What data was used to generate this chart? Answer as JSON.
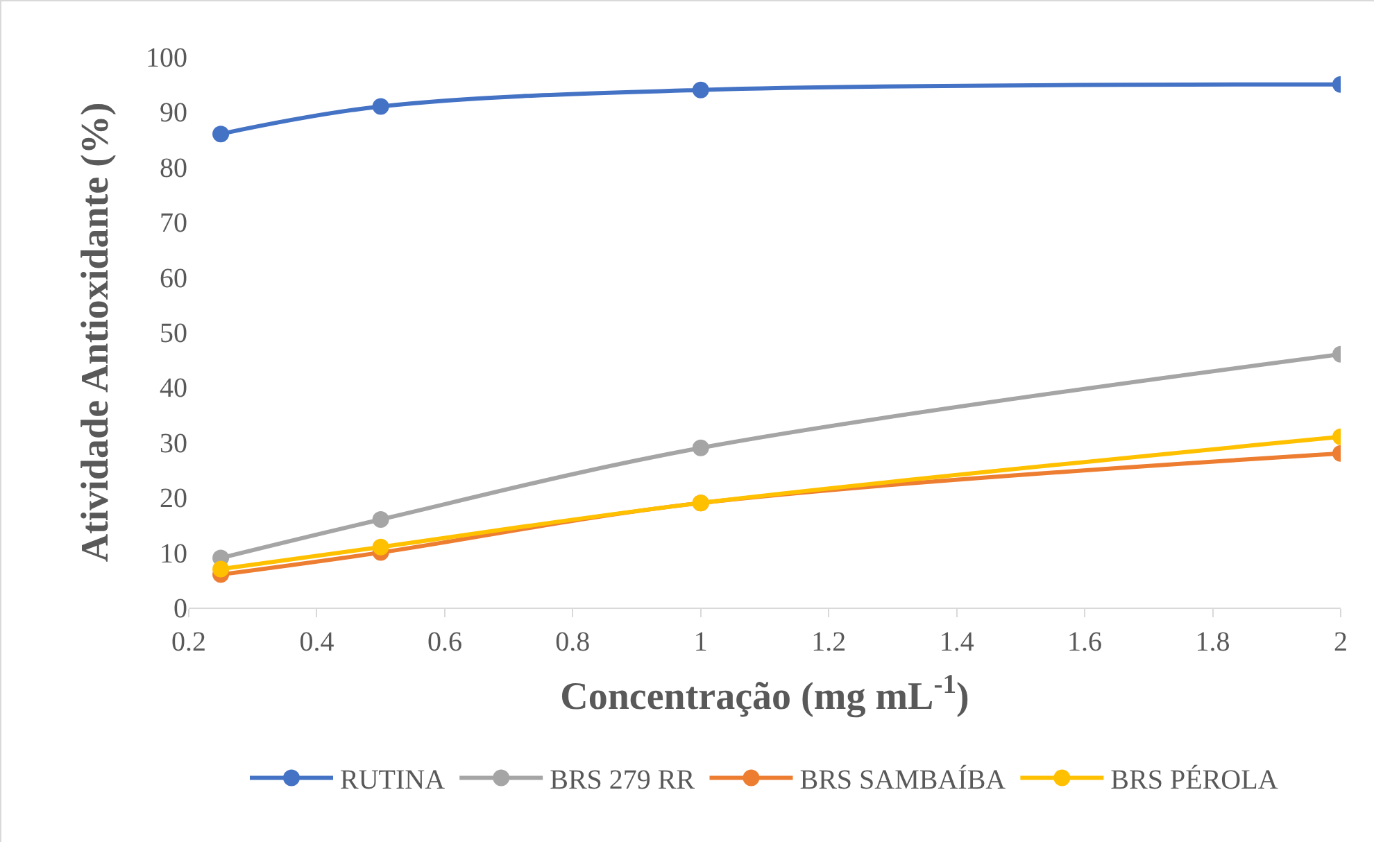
{
  "chart_data": {
    "type": "line",
    "xlabel": "Concentração (mg mL$^{-1}$)",
    "ylabel": "Atividade Antioxidante (%)",
    "x": [
      0.25,
      0.5,
      1,
      2
    ],
    "series": [
      {
        "name": "RUTINA",
        "color": "#4472c4",
        "values": [
          86,
          91,
          94,
          95
        ]
      },
      {
        "name": "BRS 279 RR",
        "color": "#a5a5a5",
        "values": [
          9,
          16,
          29,
          46
        ]
      },
      {
        "name": "BRS SAMBAÍBA",
        "color": "#ed7d31",
        "values": [
          6,
          10,
          19,
          28
        ]
      },
      {
        "name": "BRS PÉROLA",
        "color": "#ffc000",
        "values": [
          7,
          11,
          19,
          31
        ]
      }
    ],
    "xlim": [
      0.2,
      2
    ],
    "xticks": [
      0.2,
      0.4,
      0.6,
      0.8,
      1,
      1.2,
      1.4,
      1.6,
      1.8,
      2
    ],
    "ylim": [
      0,
      100
    ],
    "yticks": [
      0,
      10,
      20,
      30,
      40,
      50,
      60,
      70,
      80,
      90,
      100
    ],
    "grid": false,
    "legend": "bottom",
    "marker": "circle",
    "line_style": "solid"
  }
}
